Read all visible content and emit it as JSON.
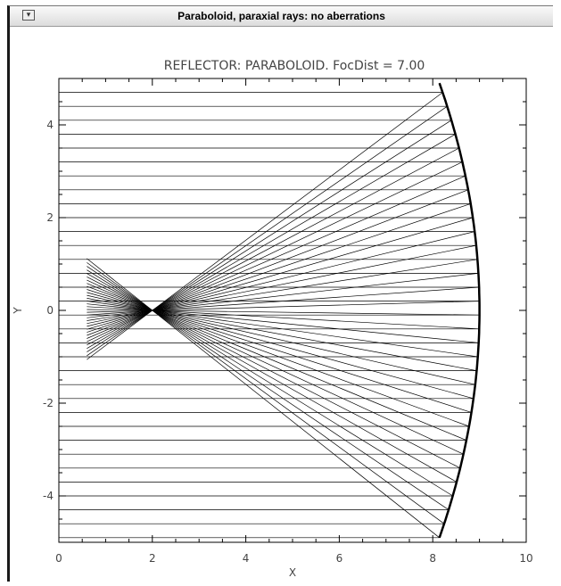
{
  "window": {
    "title": "Paraboloid, paraxial rays: no aberrations",
    "menu_icon": "window-menu-icon"
  },
  "chart_data": {
    "type": "line",
    "title": "REFLECTOR: PARABOLOID.  FocDist = 7.00",
    "xlabel": "X",
    "ylabel": "Y",
    "xlim": [
      0,
      10
    ],
    "ylim": [
      -5,
      5
    ],
    "xticks": [
      "0",
      "2",
      "4",
      "6",
      "8",
      "10"
    ],
    "yticks": [
      "-4",
      "-2",
      "0",
      "2",
      "4"
    ],
    "focal_distance": 7.0,
    "focus_point": [
      2.0,
      0.0
    ],
    "mirror": {
      "vertex_x": 9.0,
      "height_range": [
        -4.9,
        4.9
      ]
    },
    "ray_heights": [
      -4.9,
      -4.6,
      -4.3,
      -4.0,
      -3.7,
      -3.4,
      -3.1,
      -2.8,
      -2.5,
      -2.2,
      -1.9,
      -1.6,
      -1.3,
      -1.0,
      -0.7,
      -0.4,
      -0.1,
      0.2,
      0.5,
      0.8,
      1.1,
      1.4,
      1.7,
      2.0,
      2.3,
      2.6,
      2.9,
      3.2,
      3.5,
      3.8,
      4.1,
      4.4,
      4.7
    ],
    "reflected_ray_end_x": 0.6
  }
}
